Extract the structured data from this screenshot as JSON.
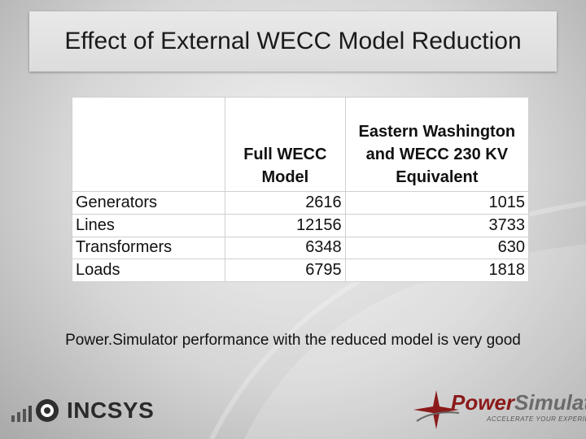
{
  "slide": {
    "title": "Effect of External WECC Model Reduction",
    "caption": "Power.Simulator performance with the reduced model is very good"
  },
  "table": {
    "headers": [
      "",
      "Full WECC Model",
      "Eastern Washington and WECC 230 KV Equivalent"
    ],
    "rows": [
      {
        "label": "Generators",
        "full": "2616",
        "equivalent": "1015"
      },
      {
        "label": "Lines",
        "full": "12156",
        "equivalent": "3733"
      },
      {
        "label": "Transformers",
        "full": "6348",
        "equivalent": "630"
      },
      {
        "label": "Loads",
        "full": "6795",
        "equivalent": "1818"
      }
    ]
  },
  "logos": {
    "incsys": "INCSYS",
    "powersimulator_power": "Power",
    "powersimulator_simulator": "Simulator",
    "powersimulator_tagline": "ACCELERATE YOUR EXPERIENCE",
    "accent_color": "#8b1a1a"
  }
}
